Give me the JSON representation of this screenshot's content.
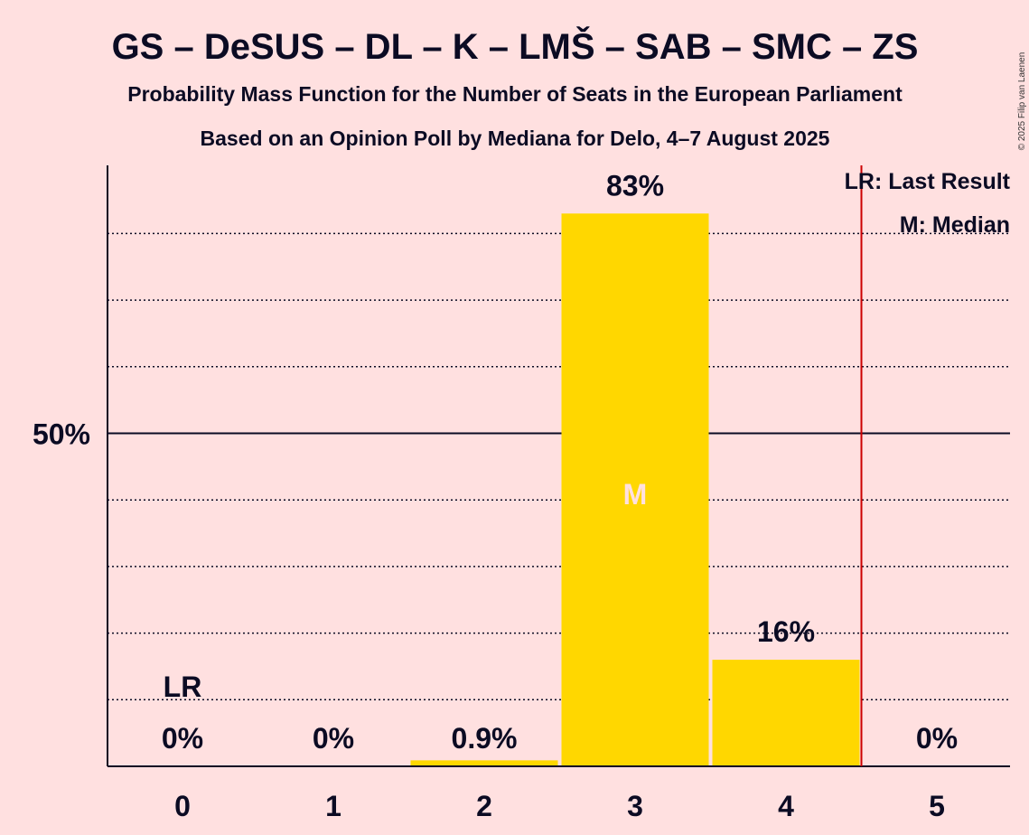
{
  "chart_data": {
    "type": "bar",
    "title": "GS – DeSUS – DL – K – LMŠ – SAB – SMC – ZS",
    "subtitle": "Probability Mass Function for the Number of Seats in the European Parliament",
    "subtitle2": "Based on an Opinion Poll by Mediana for Delo, 4–7 August 2025",
    "categories": [
      "0",
      "1",
      "2",
      "3",
      "4",
      "5"
    ],
    "values": [
      0,
      0,
      0.9,
      83,
      16,
      0
    ],
    "value_labels": [
      "0%",
      "0%",
      "0.9%",
      "83%",
      "16%",
      "0%"
    ],
    "ylim": [
      0,
      90
    ],
    "yticks": [
      {
        "value": 50,
        "label": "50%"
      }
    ],
    "gridlines": [
      10,
      20,
      30,
      40,
      60,
      70,
      80
    ],
    "last_result_seats": 0,
    "last_result_label": "LR",
    "median_seats": 3,
    "median_label": "M",
    "threshold_line_x": 4.5,
    "legend": {
      "position": "top-right",
      "items": [
        "LR: Last Result",
        "M: Median"
      ]
    },
    "colors": {
      "background": "#FFE0E0",
      "bar": "#FFD700",
      "text": "#0B0B23",
      "threshold": "#CC0000"
    },
    "copyright": "© 2025 Filip van Laenen"
  }
}
